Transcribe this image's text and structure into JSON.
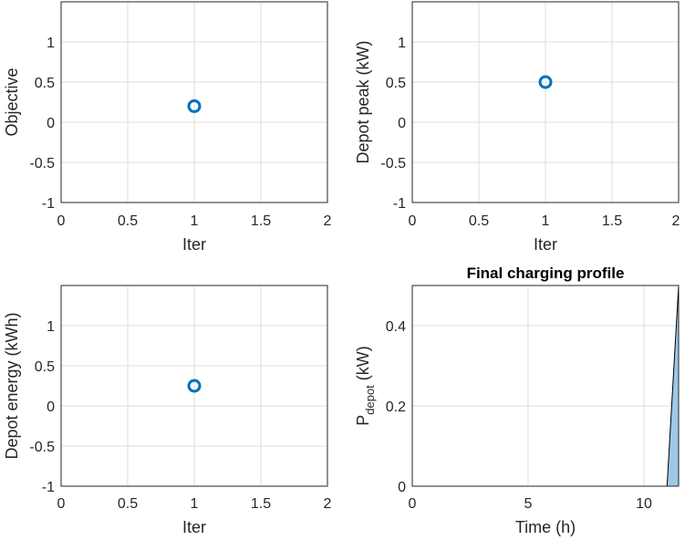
{
  "chart_data": [
    {
      "type": "scatter",
      "title": "",
      "xlabel": "Iter",
      "ylabel": "Objective",
      "xlim": [
        0,
        2
      ],
      "ylim": [
        -1,
        1.5
      ],
      "xticks": [
        "0",
        "0.5",
        "1",
        "1.5",
        "2"
      ],
      "yticks": [
        "-1",
        "-0.5",
        "0",
        "0.5",
        "1"
      ],
      "grid": true,
      "marker": "open-circle",
      "color": "#0072BD",
      "points": [
        {
          "x": 1,
          "y": 0.2
        }
      ]
    },
    {
      "type": "scatter",
      "title": "",
      "xlabel": "Iter",
      "ylabel": "Depot peak (kW)",
      "xlim": [
        0,
        2
      ],
      "ylim": [
        -1,
        1.5
      ],
      "xticks": [
        "0",
        "0.5",
        "1",
        "1.5",
        "2"
      ],
      "yticks": [
        "-1",
        "-0.5",
        "0",
        "0.5",
        "1"
      ],
      "grid": true,
      "marker": "open-circle",
      "color": "#0072BD",
      "points": [
        {
          "x": 1,
          "y": 0.5
        }
      ]
    },
    {
      "type": "scatter",
      "title": "",
      "xlabel": "Iter",
      "ylabel": "Depot energy (kWh)",
      "xlim": [
        0,
        2
      ],
      "ylim": [
        -1,
        1.5
      ],
      "xticks": [
        "0",
        "0.5",
        "1",
        "1.5",
        "2"
      ],
      "yticks": [
        "-1",
        "-0.5",
        "0",
        "0.5",
        "1"
      ],
      "grid": true,
      "marker": "open-circle",
      "color": "#0072BD",
      "points": [
        {
          "x": 1,
          "y": 0.25
        }
      ]
    },
    {
      "type": "area",
      "title": "Final charging profile",
      "xlabel": "Time (h)",
      "ylabel_main": "P",
      "ylabel_sub": "depot",
      "ylabel_unit": " (kW)",
      "xlim": [
        0,
        11.5
      ],
      "ylim": [
        0,
        0.5
      ],
      "xticks": [
        "0",
        "5",
        "10"
      ],
      "xtick_values": [
        0,
        5,
        10
      ],
      "yticks": [
        "0",
        "0.2",
        "0.4"
      ],
      "ytick_values": [
        0,
        0.2,
        0.4
      ],
      "grid": true,
      "fill_color": "#9DC8E8",
      "line_color": "#000000",
      "x": [
        0,
        11,
        11.5
      ],
      "y": [
        0,
        0,
        0.5
      ]
    }
  ]
}
